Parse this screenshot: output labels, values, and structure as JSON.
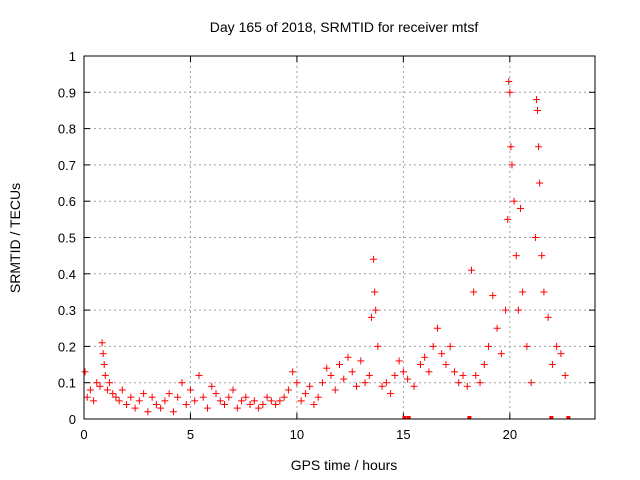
{
  "chart_data": {
    "type": "scatter",
    "title": "Day 165 of 2018, SRMTID for receiver mtsf",
    "xlabel": "GPS time / hours",
    "ylabel": "SRMTID / TECUs",
    "xlim": [
      0,
      24
    ],
    "ylim": [
      0,
      1
    ],
    "xticks": [
      0,
      5,
      10,
      15,
      20
    ],
    "yticks": [
      0,
      0.1,
      0.2,
      0.3,
      0.4,
      0.5,
      0.6,
      0.7,
      0.8,
      0.9,
      1
    ],
    "ytick_labels": [
      "0",
      "0.1",
      "0.2",
      "0.3",
      "0.4",
      "0.5",
      "0.6",
      "0.7",
      "0.8",
      "0.9",
      "1"
    ],
    "grid": true,
    "marker": "plus",
    "color": "#ff0000",
    "series": [
      {
        "name": "SRMTID",
        "note": "dense point cloud; values sampled approximately from the figure",
        "x": [
          0.05,
          0.15,
          0.3,
          0.45,
          0.6,
          0.75,
          0.85,
          0.9,
          0.95,
          1.0,
          1.1,
          1.2,
          1.35,
          1.5,
          1.65,
          1.8,
          2.0,
          2.2,
          2.4,
          2.6,
          2.8,
          3.0,
          3.2,
          3.4,
          3.6,
          3.8,
          4.0,
          4.2,
          4.4,
          4.6,
          4.8,
          5.0,
          5.2,
          5.4,
          5.6,
          5.8,
          6.0,
          6.2,
          6.4,
          6.6,
          6.8,
          7.0,
          7.2,
          7.4,
          7.6,
          7.8,
          8.0,
          8.2,
          8.4,
          8.6,
          8.8,
          9.0,
          9.2,
          9.4,
          9.6,
          9.8,
          10.0,
          10.2,
          10.4,
          10.6,
          10.8,
          11.0,
          11.2,
          11.4,
          11.6,
          11.8,
          12.0,
          12.2,
          12.4,
          12.6,
          12.8,
          13.0,
          13.2,
          13.4,
          13.5,
          13.6,
          13.65,
          13.7,
          13.8,
          14.0,
          14.2,
          14.4,
          14.6,
          14.8,
          15.0,
          15.2,
          15.5,
          15.8,
          16.0,
          16.2,
          16.4,
          16.6,
          16.8,
          17.0,
          17.2,
          17.4,
          17.6,
          17.8,
          18.0,
          18.2,
          18.3,
          18.4,
          18.6,
          18.8,
          19.0,
          19.2,
          19.4,
          19.6,
          19.8,
          19.9,
          19.95,
          20.0,
          20.05,
          20.1,
          20.2,
          20.3,
          20.4,
          20.5,
          20.6,
          20.8,
          21.0,
          21.2,
          21.25,
          21.3,
          21.35,
          21.4,
          21.5,
          21.6,
          21.8,
          22.0,
          22.2,
          22.4,
          22.6
        ],
        "y": [
          0.13,
          0.06,
          0.08,
          0.05,
          0.1,
          0.09,
          0.21,
          0.18,
          0.15,
          0.12,
          0.08,
          0.1,
          0.07,
          0.06,
          0.05,
          0.08,
          0.04,
          0.06,
          0.03,
          0.05,
          0.07,
          0.02,
          0.06,
          0.04,
          0.03,
          0.05,
          0.07,
          0.02,
          0.06,
          0.1,
          0.04,
          0.08,
          0.05,
          0.12,
          0.06,
          0.03,
          0.09,
          0.07,
          0.05,
          0.04,
          0.06,
          0.08,
          0.03,
          0.05,
          0.06,
          0.04,
          0.05,
          0.03,
          0.04,
          0.06,
          0.05,
          0.04,
          0.05,
          0.06,
          0.08,
          0.13,
          0.1,
          0.05,
          0.07,
          0.09,
          0.04,
          0.06,
          0.1,
          0.14,
          0.12,
          0.08,
          0.15,
          0.11,
          0.17,
          0.13,
          0.09,
          0.16,
          0.1,
          0.12,
          0.28,
          0.44,
          0.35,
          0.3,
          0.2,
          0.09,
          0.1,
          0.07,
          0.12,
          0.16,
          0.13,
          0.11,
          0.09,
          0.15,
          0.17,
          0.13,
          0.2,
          0.25,
          0.18,
          0.15,
          0.2,
          0.13,
          0.1,
          0.12,
          0.09,
          0.41,
          0.35,
          0.12,
          0.1,
          0.15,
          0.2,
          0.34,
          0.25,
          0.18,
          0.3,
          0.55,
          0.93,
          0.9,
          0.75,
          0.7,
          0.6,
          0.45,
          0.3,
          0.58,
          0.35,
          0.2,
          0.1,
          0.5,
          0.88,
          0.85,
          0.75,
          0.65,
          0.45,
          0.35,
          0.28,
          0.15,
          0.2,
          0.18,
          0.12
        ],
        "zero_markers_x": [
          15.05,
          15.25,
          18.1,
          21.95,
          22.75
        ]
      }
    ]
  }
}
